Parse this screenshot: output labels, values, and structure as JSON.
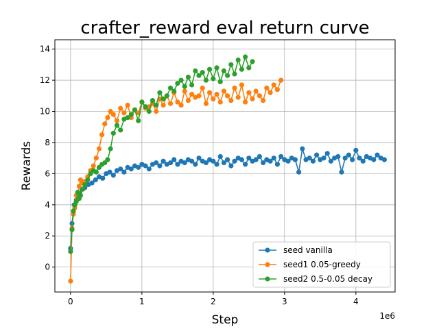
{
  "chart_data": {
    "type": "line",
    "title": "crafter_reward eval return curve",
    "xlabel": "Step",
    "ylabel": "Rewards",
    "x_offset_label": "1e6",
    "xlim": [
      -0.22,
      4.55
    ],
    "ylim": [
      -1.6,
      14.6
    ],
    "xticks": [
      0,
      1,
      2,
      3,
      4
    ],
    "yticks": [
      0,
      2,
      4,
      6,
      8,
      10,
      12,
      14
    ],
    "grid": true,
    "legend_position": "lower-right",
    "series": [
      {
        "name": "seed vanilla",
        "color": "#1f77b4",
        "x": [
          0.0,
          0.02,
          0.05,
          0.08,
          0.1,
          0.13,
          0.16,
          0.2,
          0.25,
          0.3,
          0.35,
          0.4,
          0.45,
          0.5,
          0.55,
          0.6,
          0.65,
          0.7,
          0.75,
          0.8,
          0.85,
          0.9,
          0.95,
          1.0,
          1.05,
          1.1,
          1.15,
          1.2,
          1.25,
          1.3,
          1.35,
          1.4,
          1.45,
          1.5,
          1.55,
          1.6,
          1.65,
          1.7,
          1.75,
          1.8,
          1.85,
          1.9,
          1.95,
          2.0,
          2.05,
          2.1,
          2.15,
          2.2,
          2.25,
          2.3,
          2.35,
          2.4,
          2.45,
          2.5,
          2.55,
          2.6,
          2.65,
          2.7,
          2.75,
          2.8,
          2.85,
          2.9,
          2.95,
          3.0,
          3.05,
          3.1,
          3.15,
          3.2,
          3.25,
          3.3,
          3.35,
          3.4,
          3.45,
          3.5,
          3.55,
          3.6,
          3.65,
          3.7,
          3.75,
          3.8,
          3.85,
          3.9,
          3.95,
          4.0,
          4.05,
          4.1,
          4.15,
          4.2,
          4.25,
          4.3,
          4.35,
          4.4
        ],
        "y": [
          1.2,
          2.8,
          4.0,
          4.3,
          4.5,
          4.7,
          5.0,
          5.1,
          5.3,
          5.4,
          5.6,
          5.8,
          5.7,
          6.0,
          6.1,
          5.9,
          6.2,
          6.3,
          6.1,
          6.4,
          6.3,
          6.5,
          6.4,
          6.6,
          6.5,
          6.3,
          6.6,
          6.7,
          6.5,
          6.8,
          6.6,
          6.7,
          6.9,
          6.6,
          6.8,
          6.7,
          6.9,
          6.8,
          6.6,
          7.0,
          6.8,
          6.7,
          6.9,
          6.8,
          6.6,
          7.1,
          6.7,
          6.9,
          6.5,
          6.8,
          7.0,
          6.9,
          6.6,
          7.0,
          6.8,
          6.9,
          7.1,
          6.7,
          6.9,
          6.8,
          7.0,
          6.6,
          7.1,
          6.9,
          6.8,
          7.0,
          6.9,
          6.1,
          7.6,
          6.9,
          7.0,
          6.8,
          7.2,
          6.9,
          7.0,
          7.3,
          6.8,
          7.0,
          7.1,
          6.1,
          7.0,
          7.2,
          6.9,
          7.5,
          7.0,
          6.8,
          7.1,
          7.0,
          6.9,
          7.2,
          7.0,
          6.9
        ]
      },
      {
        "name": "seed1 0.05-greedy",
        "color": "#ff7f0e",
        "x": [
          0.0,
          0.02,
          0.04,
          0.06,
          0.08,
          0.1,
          0.12,
          0.14,
          0.17,
          0.2,
          0.24,
          0.28,
          0.32,
          0.36,
          0.4,
          0.44,
          0.48,
          0.52,
          0.56,
          0.6,
          0.65,
          0.7,
          0.75,
          0.8,
          0.85,
          0.9,
          0.95,
          1.0,
          1.05,
          1.1,
          1.15,
          1.2,
          1.25,
          1.3,
          1.35,
          1.4,
          1.45,
          1.5,
          1.55,
          1.6,
          1.65,
          1.7,
          1.75,
          1.8,
          1.85,
          1.9,
          1.95,
          2.0,
          2.05,
          2.1,
          2.15,
          2.2,
          2.25,
          2.3,
          2.35,
          2.4,
          2.45,
          2.5,
          2.55,
          2.6,
          2.65,
          2.7,
          2.75,
          2.8,
          2.85,
          2.9,
          2.95
        ],
        "y": [
          -0.9,
          2.5,
          3.4,
          3.8,
          4.6,
          4.8,
          5.2,
          5.6,
          5.4,
          5.5,
          5.8,
          6.2,
          6.5,
          7.0,
          7.6,
          8.5,
          9.2,
          9.6,
          10.0,
          9.8,
          9.4,
          10.2,
          9.9,
          10.4,
          9.6,
          10.1,
          9.9,
          10.6,
          10.2,
          10.3,
          10.5,
          10.0,
          10.8,
          10.4,
          11.0,
          10.5,
          11.2,
          10.6,
          10.4,
          11.3,
          10.7,
          11.1,
          10.9,
          11.0,
          11.5,
          10.5,
          11.2,
          10.8,
          11.1,
          10.6,
          11.3,
          11.0,
          10.7,
          11.5,
          10.9,
          11.7,
          10.6,
          11.2,
          10.8,
          11.3,
          11.0,
          10.7,
          11.5,
          11.2,
          11.7,
          11.4,
          12.0
        ]
      },
      {
        "name": "seed2 0.5-0.05 decay",
        "color": "#2ca02c",
        "x": [
          0.0,
          0.02,
          0.04,
          0.06,
          0.08,
          0.1,
          0.12,
          0.14,
          0.17,
          0.2,
          0.24,
          0.28,
          0.32,
          0.36,
          0.4,
          0.44,
          0.48,
          0.52,
          0.56,
          0.6,
          0.65,
          0.7,
          0.75,
          0.8,
          0.85,
          0.9,
          0.95,
          1.0,
          1.05,
          1.1,
          1.15,
          1.2,
          1.25,
          1.3,
          1.35,
          1.4,
          1.45,
          1.5,
          1.55,
          1.6,
          1.65,
          1.7,
          1.75,
          1.8,
          1.85,
          1.9,
          1.95,
          2.0,
          2.05,
          2.1,
          2.15,
          2.2,
          2.25,
          2.3,
          2.35,
          2.4,
          2.45,
          2.5,
          2.55
        ],
        "y": [
          1.0,
          2.4,
          3.6,
          4.0,
          4.2,
          4.8,
          4.4,
          4.6,
          5.0,
          5.3,
          5.6,
          6.0,
          6.2,
          6.1,
          6.4,
          6.6,
          6.7,
          6.9,
          7.6,
          8.6,
          9.1,
          8.8,
          9.5,
          9.6,
          9.8,
          10.1,
          9.4,
          10.6,
          10.3,
          10.0,
          10.7,
          10.4,
          11.2,
          10.8,
          11.0,
          11.5,
          11.3,
          11.8,
          12.0,
          11.6,
          12.2,
          11.7,
          12.6,
          12.3,
          12.5,
          12.0,
          12.7,
          12.1,
          12.8,
          11.9,
          12.6,
          12.3,
          13.0,
          12.4,
          13.3,
          12.7,
          13.5,
          12.8,
          13.2
        ]
      }
    ]
  }
}
